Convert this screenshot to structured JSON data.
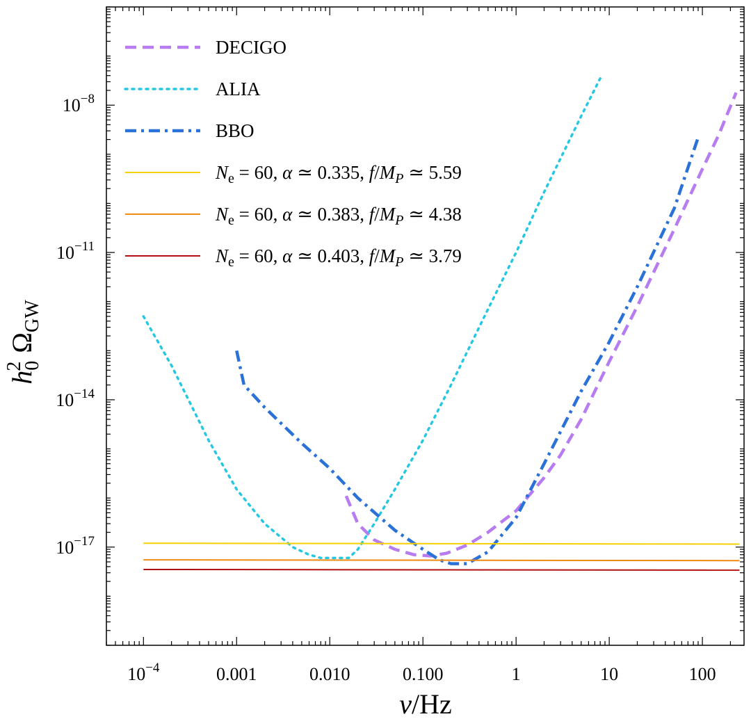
{
  "chart_data": {
    "type": "line",
    "title": "",
    "xlabel": "ν/Hz",
    "ylabel": "h0² ΩGW",
    "xscale": "log",
    "yscale": "log",
    "xlim": [
      4e-05,
      280
    ],
    "ylim": [
      1e-19,
      1e-06
    ],
    "grid": false,
    "legend_position": "top-left",
    "x_ticks": [
      {
        "value": 0.0001,
        "label": "10",
        "exp": "−4"
      },
      {
        "value": 0.001,
        "label": "0.001",
        "exp": ""
      },
      {
        "value": 0.01,
        "label": "0.010",
        "exp": ""
      },
      {
        "value": 0.1,
        "label": "0.100",
        "exp": ""
      },
      {
        "value": 1,
        "label": "1",
        "exp": ""
      },
      {
        "value": 10,
        "label": "10",
        "exp": ""
      },
      {
        "value": 100,
        "label": "100",
        "exp": ""
      }
    ],
    "y_ticks": [
      {
        "value": 1e-17,
        "label": "10",
        "exp": "−17"
      },
      {
        "value": 1e-14,
        "label": "10",
        "exp": "−14"
      },
      {
        "value": 1e-11,
        "label": "10",
        "exp": "−11"
      },
      {
        "value": 1e-08,
        "label": "10",
        "exp": "−8"
      }
    ],
    "series": [
      {
        "name": "DECIGO",
        "color": "#b77cf0",
        "style": "dashed",
        "points": [
          [
            0.015,
            1.1e-16
          ],
          [
            0.02,
            3e-17
          ],
          [
            0.03,
            1.4e-17
          ],
          [
            0.05,
            9e-18
          ],
          [
            0.08,
            7e-18
          ],
          [
            0.12,
            6.6e-18
          ],
          [
            0.18,
            7.5e-18
          ],
          [
            0.3,
            1.1e-17
          ],
          [
            0.5,
            2e-17
          ],
          [
            1,
            5.5e-17
          ],
          [
            2,
            2.6e-16
          ],
          [
            3,
            7.5e-16
          ],
          [
            5,
            4e-15
          ],
          [
            10,
            6e-14
          ],
          [
            20,
            8e-13
          ],
          [
            50,
            3e-11
          ],
          [
            100,
            5e-10
          ],
          [
            150,
            2.5e-09
          ],
          [
            230,
            1.8e-08
          ]
        ]
      },
      {
        "name": "ALIA",
        "color": "#25c8e0",
        "style": "dotted",
        "points": [
          [
            0.0001,
            5e-13
          ],
          [
            0.0002,
            5e-14
          ],
          [
            0.0005,
            1.5e-15
          ],
          [
            0.001,
            1.5e-16
          ],
          [
            0.002,
            3e-17
          ],
          [
            0.004,
            1e-17
          ],
          [
            0.006,
            7e-18
          ],
          [
            0.008,
            6e-18
          ],
          [
            0.012,
            6e-18
          ],
          [
            0.016,
            6e-18
          ],
          [
            0.02,
            9e-18
          ],
          [
            0.03,
            3e-17
          ],
          [
            0.05,
            1.5e-16
          ],
          [
            0.1,
            1.5e-15
          ],
          [
            0.2,
            2e-14
          ],
          [
            0.5,
            7e-13
          ],
          [
            1,
            1e-11
          ],
          [
            2,
            1.7e-10
          ],
          [
            5,
            6e-09
          ],
          [
            8,
            3.5e-08
          ]
        ]
      },
      {
        "name": "BBO",
        "color": "#2b72d8",
        "style": "dashdot",
        "points": [
          [
            0.001,
            1e-13
          ],
          [
            0.0012,
            2e-14
          ],
          [
            0.002,
            7e-15
          ],
          [
            0.005,
            1.3e-15
          ],
          [
            0.01,
            4e-16
          ],
          [
            0.02,
            1e-16
          ],
          [
            0.05,
            2.2e-17
          ],
          [
            0.1,
            9e-18
          ],
          [
            0.15,
            5.5e-18
          ],
          [
            0.2,
            4.6e-18
          ],
          [
            0.3,
            4.6e-18
          ],
          [
            0.5,
            8e-18
          ],
          [
            1,
            4e-17
          ],
          [
            2,
            5e-16
          ],
          [
            5,
            1.5e-14
          ],
          [
            10,
            1.5e-13
          ],
          [
            20,
            2e-12
          ],
          [
            50,
            8e-11
          ],
          [
            90,
            2.2e-09
          ]
        ]
      },
      {
        "name": "N_e = 60, α ≃ 0.335, f/M_P ≃ 5.59",
        "legend": {
          "n": "N",
          "n_sub": "e",
          "eq": " = 60, ",
          "alpha": "α",
          "alpha_eq": " ≃ 0.335, ",
          "f": "f",
          "slash": "/",
          "m": "M",
          "m_sub": "P",
          "end": " ≃ 5.59"
        },
        "color": "#f5d000",
        "style": "solid",
        "points": [
          [
            0.0001,
            1.2e-17
          ],
          [
            250,
            1.15e-17
          ]
        ]
      },
      {
        "name": "N_e = 60, α ≃ 0.383, f/M_P ≃ 4.38",
        "legend": {
          "n": "N",
          "n_sub": "e",
          "eq": " = 60, ",
          "alpha": "α",
          "alpha_eq": " ≃ 0.383, ",
          "f": "f",
          "slash": "/",
          "m": "M",
          "m_sub": "P",
          "end": " ≃ 4.38"
        },
        "color": "#f08a10",
        "style": "solid",
        "points": [
          [
            0.0001,
            5.5e-18
          ],
          [
            250,
            5.3e-18
          ]
        ]
      },
      {
        "name": "N_e = 60, α ≃ 0.403, f/M_P ≃ 3.79",
        "legend": {
          "n": "N",
          "n_sub": "e",
          "eq": " = 60, ",
          "alpha": "α",
          "alpha_eq": " ≃ 0.403, ",
          "f": "f",
          "slash": "/",
          "m": "M",
          "m_sub": "P",
          "end": " ≃ 3.79"
        },
        "color": "#b21010",
        "style": "solid",
        "points": [
          [
            0.0001,
            3.5e-18
          ],
          [
            250,
            3.4e-18
          ]
        ]
      }
    ],
    "axis_labels": {
      "x": {
        "nu": "ν",
        "rest": "/Hz"
      },
      "y": {
        "h": "h",
        "sub": "0",
        "sup": "2",
        "omega": "Ω",
        "omega_sub": "GW"
      }
    }
  }
}
